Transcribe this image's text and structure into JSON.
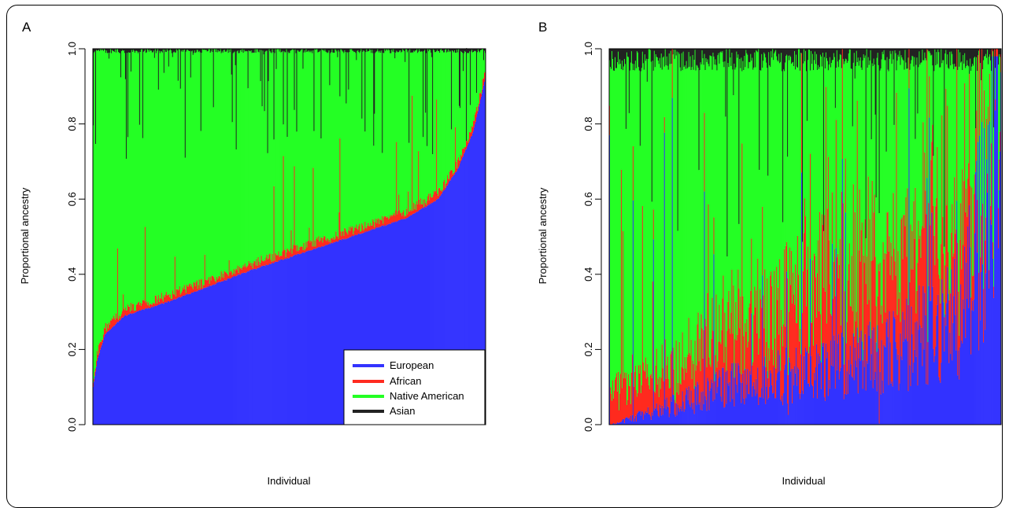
{
  "colors": {
    "European": "#3333ff",
    "African": "#ff2a1f",
    "Native American": "#24ff24",
    "Asian": "#222222"
  },
  "chart_data": [
    {
      "panel": "A",
      "type": "bar",
      "stacked": true,
      "title": "",
      "xlabel": "Individual",
      "ylabel": "Proportional ancestry",
      "ylim": [
        0,
        1
      ],
      "yticks": [
        "0.0",
        "0.2",
        "0.4",
        "0.6",
        "0.8",
        "1.0"
      ],
      "legend": {
        "position": "bottom-right",
        "entries": [
          "European",
          "African",
          "Native American",
          "Asian"
        ]
      },
      "n_individuals": 500,
      "series_order": [
        "European",
        "African",
        "Native American",
        "Asian"
      ],
      "series_summary": {
        "European": {
          "min": 0.1,
          "max": 0.92,
          "at_0.1": 0.29,
          "at_0.3": 0.38,
          "at_0.5": 0.45,
          "at_0.7": 0.52,
          "at_0.9": 0.62
        },
        "African": {
          "typical": 0.015
        },
        "Asian": {
          "typical": 0.005
        }
      }
    },
    {
      "panel": "B",
      "type": "bar",
      "stacked": true,
      "title": "",
      "xlabel": "Individual",
      "ylabel": "Proportional ancestry",
      "ylim": [
        0,
        1
      ],
      "yticks": [
        "0.0",
        "0.2",
        "0.4",
        "0.6",
        "0.8",
        "1.0"
      ],
      "n_individuals": 500,
      "series_order": [
        "European",
        "African",
        "Native American",
        "Asian"
      ],
      "series_summary": {
        "European": {
          "min": 0.0,
          "max": 1.0,
          "at_0.1": 0.03,
          "at_0.3": 0.1,
          "at_0.5": 0.14,
          "at_0.7": 0.18,
          "at_0.9": 0.3
        },
        "African": {
          "at_0.1": 0.08,
          "at_0.3": 0.15,
          "at_0.5": 0.22,
          "at_0.7": 0.25,
          "at_0.9": 0.28
        },
        "Asian": {
          "typical": 0.04
        }
      }
    }
  ]
}
